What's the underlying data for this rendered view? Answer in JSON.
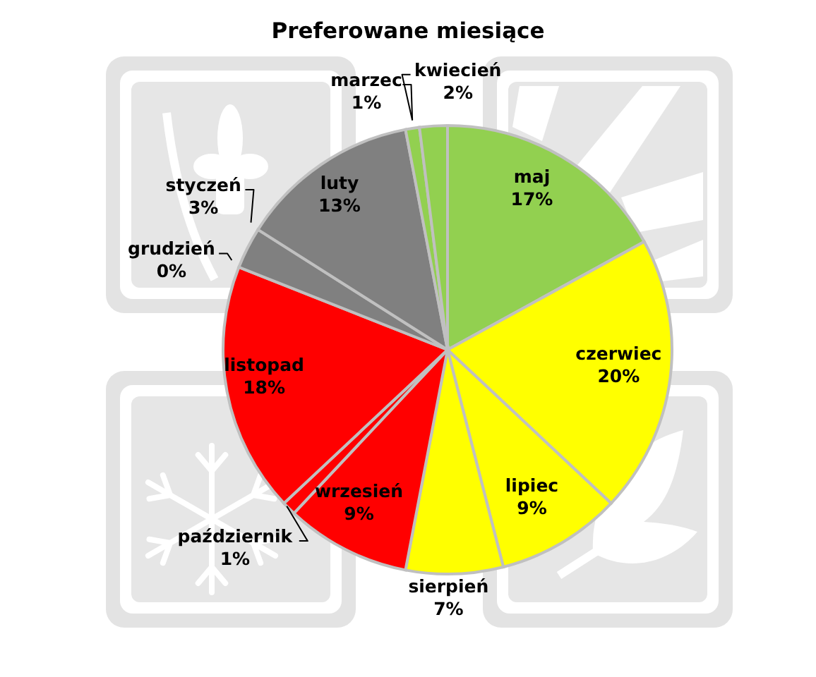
{
  "chart_data": {
    "type": "pie",
    "title": "Preferowane miesiące",
    "categories": [
      "maj",
      "czerwiec",
      "lipiec",
      "sierpień",
      "wrzesień",
      "październik",
      "listopad",
      "grudzień",
      "styczeń",
      "luty",
      "marzec",
      "kwiecień"
    ],
    "values": [
      17,
      20,
      9,
      7,
      9,
      1,
      18,
      0,
      3,
      13,
      1,
      2
    ],
    "value_labels": [
      "17%",
      "20%",
      "9%",
      "7%",
      "9%",
      "1%",
      "18%",
      "0%",
      "3%",
      "13%",
      "1%",
      "2%"
    ],
    "colors": [
      "#92d050",
      "#ffff00",
      "#ffff00",
      "#ffff00",
      "#ff0000",
      "#ff0000",
      "#ff0000",
      "#808080",
      "#808080",
      "#808080",
      "#92d050",
      "#92d050"
    ]
  }
}
